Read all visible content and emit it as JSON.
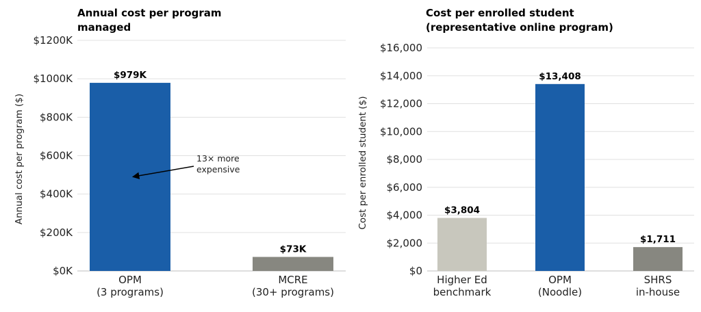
{
  "colors": {
    "blue": "#1a5ea8",
    "gray": "#878780",
    "light_gray": "#c8c7bd"
  },
  "chart_data": [
    {
      "type": "bar",
      "title_lines": [
        "Annual cost per program",
        "managed"
      ],
      "ylabel": "Annual cost per program ($)",
      "ylim": [
        0,
        1200
      ],
      "unit": "thousand USD",
      "yticks": [
        0,
        200,
        400,
        600,
        800,
        1000,
        1200
      ],
      "ytick_labels": [
        "$0K",
        "$200K",
        "$400K",
        "$600K",
        "$800K",
        "$1000K",
        "$1200K"
      ],
      "grid": true,
      "categories": [
        {
          "lines": [
            "OPM",
            "(3 programs)"
          ]
        },
        {
          "lines": [
            "MCRE",
            "(30+ programs)"
          ]
        }
      ],
      "values": [
        979,
        73
      ],
      "value_labels": [
        "$979K",
        "$73K"
      ],
      "bar_colors": [
        "#1a5ea8",
        "#878780"
      ],
      "annotation": {
        "lines": [
          "13× more",
          "expensive"
        ],
        "points_to": {
          "category": 0,
          "value": 490
        }
      }
    },
    {
      "type": "bar",
      "title_lines": [
        "Cost per enrolled student",
        "(representative online program)"
      ],
      "ylabel": "Cost per enrolled student ($)",
      "ylim": [
        0,
        16000
      ],
      "yticks": [
        0,
        2000,
        4000,
        6000,
        8000,
        10000,
        12000,
        14000,
        16000
      ],
      "ytick_labels": [
        "$0",
        "$2,000",
        "$4,000",
        "$6,000",
        "$8,000",
        "$10,000",
        "$12,000",
        "$14,000",
        "$16,000"
      ],
      "grid": true,
      "categories": [
        {
          "lines": [
            "Higher Ed",
            "benchmark"
          ]
        },
        {
          "lines": [
            "OPM",
            "(Noodle)"
          ]
        },
        {
          "lines": [
            "SHRS",
            "in-house"
          ]
        }
      ],
      "values": [
        3804,
        13408,
        1711
      ],
      "value_labels": [
        "$3,804",
        "$13,408",
        "$1,711"
      ],
      "bar_colors": [
        "#c8c7bd",
        "#1a5ea8",
        "#878780"
      ]
    }
  ]
}
